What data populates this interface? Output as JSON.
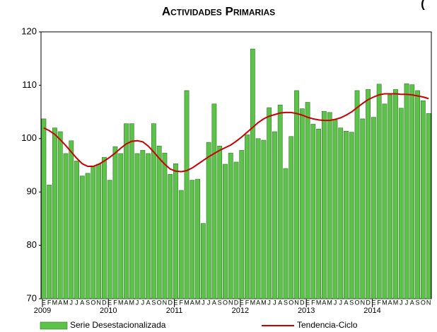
{
  "chart_data": {
    "type": "bar",
    "title": "Actividades Primarias",
    "corner_text": "(",
    "categories": [
      "E",
      "F",
      "M",
      "A",
      "M",
      "J",
      "J",
      "A",
      "S",
      "O",
      "N",
      "D",
      "E",
      "F",
      "M",
      "A",
      "M",
      "J",
      "J",
      "A",
      "S",
      "O",
      "N",
      "D",
      "E",
      "F",
      "M",
      "A",
      "M",
      "J",
      "J",
      "A",
      "S",
      "O",
      "N",
      "D",
      "E",
      "F",
      "M",
      "A",
      "M",
      "J",
      "J",
      "A",
      "S",
      "O",
      "N",
      "D",
      "E",
      "F",
      "M",
      "A",
      "M",
      "J",
      "J",
      "A",
      "S",
      "O",
      "N",
      "D",
      "E",
      "F",
      "M",
      "A",
      "M",
      "J",
      "J",
      "A",
      "S",
      "O",
      "N"
    ],
    "year_labels": [
      "2009",
      "2010",
      "2011",
      "2012",
      "2013",
      "2014"
    ],
    "ylim": [
      70,
      120
    ],
    "yticks": [
      70,
      80,
      90,
      100,
      110,
      120
    ],
    "grid": false,
    "legend": "bottom",
    "series": [
      {
        "name": "Serie Desestacionalizada",
        "type": "bar",
        "color": "#5cc24a",
        "values": [
          103.7,
          91.3,
          102,
          101.3,
          97.2,
          99.6,
          95.8,
          93,
          93.5,
          94.9,
          95.2,
          96.5,
          92.2,
          98.5,
          97.2,
          102.8,
          102.8,
          97.2,
          97.8,
          97.2,
          102.8,
          98.6,
          97.3,
          93.3,
          95.3,
          90.3,
          109,
          92.2,
          92.4,
          84.1,
          99.3,
          106.5,
          98.6,
          95.2,
          97.3,
          95.6,
          97.8,
          100.7,
          116.8,
          100,
          99.7,
          105.8,
          101.3,
          106.3,
          94.4,
          100.4,
          109,
          105.6,
          106.8,
          102.7,
          101.8,
          105.1,
          104.9,
          103.5,
          102,
          101.4,
          101.2,
          109,
          103.7,
          109.2,
          104,
          110.2,
          106.5,
          108.2,
          109.2,
          105.7,
          110.3,
          110.1,
          109,
          107.1,
          104.7
        ]
      },
      {
        "name": "Tendencia-Ciclo",
        "type": "line",
        "color": "#cc0000",
        "values": [
          102,
          101.5,
          100.8,
          99.8,
          98.7,
          97.5,
          96.3,
          95.3,
          94.8,
          94.8,
          95.2,
          95.8,
          96.5,
          97.3,
          98.2,
          99,
          99.5,
          99.6,
          99.4,
          98.6,
          97.5,
          96.3,
          95.2,
          94.3,
          93.9,
          93.8,
          94,
          94.5,
          95.2,
          95.9,
          96.6,
          97.2,
          97.8,
          98.3,
          98.8,
          99.5,
          100.3,
          101.2,
          102.1,
          103,
          103.7,
          104.2,
          104.5,
          104.8,
          104.9,
          104.9,
          104.7,
          104.4,
          104,
          103.7,
          103.5,
          103.4,
          103.4,
          103.6,
          103.9,
          104.4,
          105,
          105.8,
          106.6,
          107.3,
          107.8,
          108.2,
          108.4,
          108.4,
          108.4,
          108.3,
          108.3,
          108.2,
          108,
          107.8,
          107.5
        ]
      }
    ]
  }
}
